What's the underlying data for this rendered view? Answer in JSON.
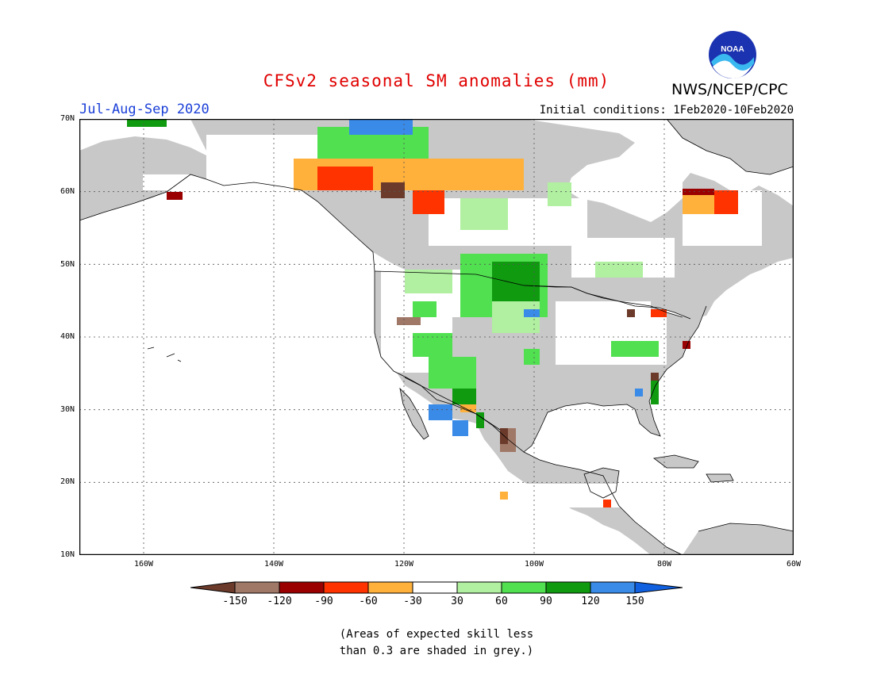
{
  "title": "CFSv2 seasonal SM anomalies (mm)",
  "agency": "NWS/NCEP/CPC",
  "logo_text": "NOAA",
  "season": "Jul-Aug-Sep 2020",
  "initial_conditions": "Initial conditions: 1Feb2020-10Feb2020",
  "lat_labels": [
    "70N",
    "60N",
    "50N",
    "40N",
    "30N",
    "20N",
    "10N"
  ],
  "lon_labels": [
    "160W",
    "140W",
    "120W",
    "100W",
    "80W",
    "60W"
  ],
  "colorbar": {
    "labels": [
      "-150",
      "-120",
      "-90",
      "-60",
      "-30",
      "30",
      "60",
      "90",
      "120",
      "150"
    ],
    "colors": [
      "#6b3a2a",
      "#a07868",
      "#9a0000",
      "#ff3300",
      "#ffb13c",
      "#ffffff",
      "#b0f0a0",
      "#50e050",
      "#109a10",
      "#3a8ae8",
      "#1060e0"
    ]
  },
  "note_line1": "(Areas of expected skill less",
  "note_line2": "than 0.3 are shaded in grey.)",
  "colors": {
    "ocean": "#ffffff",
    "skill_grey": "#c8c8c8",
    "title": "#e00000",
    "season": "#1a3fd8"
  }
}
